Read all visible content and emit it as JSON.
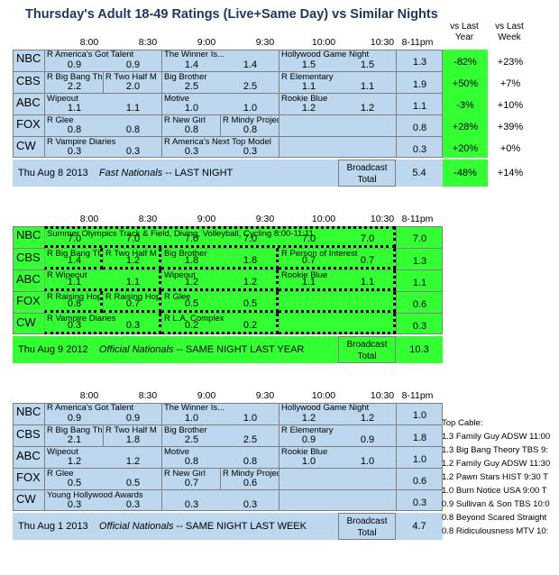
{
  "title": "Thursday's Adult 18-49 Ratings (Live+Same Day) vs Similar Nights",
  "change_headers": {
    "last_year": [
      "vs Last",
      "Year"
    ],
    "last_week": [
      "vs Last",
      "Week"
    ]
  },
  "time_headers": [
    "8:00",
    "8:30",
    "9:00",
    "9:30",
    "10:00",
    "10:30",
    "8-11pm"
  ],
  "sections": [
    {
      "id": "tonight",
      "rows": [
        {
          "net": "NBC",
          "cells": [
            {
              "span": 2,
              "name": "R America's Got Talent",
              "ratings": [
                "0.9",
                "0.9"
              ]
            },
            {
              "span": 2,
              "name": "The Winner Is...",
              "ratings": [
                "1.4",
                "1.4"
              ]
            },
            {
              "span": 2,
              "name": "Hollywood Game Night",
              "ratings": [
                "1.5",
                "1.5"
              ]
            }
          ],
          "total": "1.3",
          "vs_year": "-82%",
          "vs_week": "+23%"
        },
        {
          "net": "CBS",
          "cells": [
            {
              "span": 1,
              "name": "R Big Bang Th",
              "ratings": [
                "2.2"
              ]
            },
            {
              "span": 1,
              "name": "R Two Half M",
              "ratings": [
                "2.0"
              ]
            },
            {
              "span": 2,
              "name": "Big Brother",
              "ratings": [
                "2.5",
                "2.5"
              ]
            },
            {
              "span": 2,
              "name": "R Elementary",
              "ratings": [
                "1.1",
                "1.1"
              ]
            }
          ],
          "total": "1.9",
          "vs_year": "+50%",
          "vs_week": "+7%"
        },
        {
          "net": "ABC",
          "cells": [
            {
              "span": 2,
              "name": "Wipeout",
              "ratings": [
                "1.1",
                "1.1"
              ]
            },
            {
              "span": 2,
              "name": "Motive",
              "ratings": [
                "1.0",
                "1.0"
              ]
            },
            {
              "span": 2,
              "name": "Rookie Blue",
              "ratings": [
                "1.2",
                "1.2"
              ]
            }
          ],
          "total": "1.1",
          "vs_year": "-3%",
          "vs_week": "+10%"
        },
        {
          "net": "FOX",
          "cells": [
            {
              "span": 2,
              "name": "R Glee",
              "ratings": [
                "0.8",
                "0.8"
              ]
            },
            {
              "span": 1,
              "name": "R New Girl",
              "ratings": [
                "0.8"
              ]
            },
            {
              "span": 1,
              "name": "R Mindy Project",
              "ratings": [
                "0.8"
              ]
            },
            {
              "span": 2,
              "name": "",
              "ratings": []
            }
          ],
          "total": "0.8",
          "vs_year": "+28%",
          "vs_week": "+39%"
        },
        {
          "net": "CW",
          "cells": [
            {
              "span": 2,
              "name": "R Vampire Diaries",
              "ratings": [
                "0.3",
                "0.3"
              ]
            },
            {
              "span": 2,
              "name": "R America's Next Top Model",
              "ratings": [
                "0.3",
                "0.3"
              ]
            },
            {
              "span": 2,
              "name": "",
              "ratings": []
            }
          ],
          "total": "0.3",
          "vs_year": "+20%",
          "vs_week": "+0%"
        }
      ],
      "footer": {
        "date": "Thu Aug 8 2013",
        "kind": "Fast Nationals",
        "desc": "-- LAST NIGHT",
        "bc1": "Broadcast",
        "bc2": "Total",
        "total": "5.4",
        "vs_year": "-48%",
        "vs_week": "+14%"
      }
    },
    {
      "id": "last_year",
      "rows": [
        {
          "net": "NBC",
          "cells": [
            {
              "span": 6,
              "name": "Summer Olympics Track & Field, Diving, Volleyball, Cycling 8:00-11:11",
              "ratings": [
                "7.0",
                "7.0",
                "7.0",
                "7.0",
                "7.0",
                "7.0"
              ]
            }
          ],
          "total": "7.0"
        },
        {
          "net": "CBS",
          "cells": [
            {
              "span": 1,
              "name": "R Big Bang Th",
              "ratings": [
                "1.4"
              ]
            },
            {
              "span": 1,
              "name": "R Two Half M",
              "ratings": [
                "1.2"
              ]
            },
            {
              "span": 2,
              "name": "Big Brother",
              "ratings": [
                "1.8",
                "1.8"
              ]
            },
            {
              "span": 2,
              "name": "R Person of Interest",
              "ratings": [
                "0.7",
                "0.7"
              ]
            }
          ],
          "total": "1.3"
        },
        {
          "net": "ABC",
          "cells": [
            {
              "span": 2,
              "name": "R Wipeout",
              "ratings": [
                "1.1",
                "1.1"
              ]
            },
            {
              "span": 2,
              "name": "Wipeout",
              "ratings": [
                "1.2",
                "1.2"
              ]
            },
            {
              "span": 2,
              "name": "Rookie Blue",
              "ratings": [
                "1.1",
                "1.1"
              ]
            }
          ],
          "total": "1.1"
        },
        {
          "net": "FOX",
          "cells": [
            {
              "span": 1,
              "name": "R Raising Hop",
              "ratings": [
                "0.8"
              ]
            },
            {
              "span": 1,
              "name": "R Raising Hop",
              "ratings": [
                "0.7"
              ]
            },
            {
              "span": 2,
              "name": "R Glee",
              "ratings": [
                "0.5",
                "0.5"
              ]
            },
            {
              "span": 2,
              "name": "",
              "ratings": []
            }
          ],
          "total": "0.6"
        },
        {
          "net": "CW",
          "cells": [
            {
              "span": 2,
              "name": "R Vampire Diaries",
              "ratings": [
                "0.3",
                "0.3"
              ]
            },
            {
              "span": 2,
              "name": "R L.A. Complex",
              "ratings": [
                "0.2",
                "0.2"
              ]
            },
            {
              "span": 2,
              "name": "",
              "ratings": []
            }
          ],
          "total": "0.3"
        }
      ],
      "footer": {
        "date": "Thu Aug 9 2012",
        "kind": "Official Nationals",
        "desc": "-- SAME NIGHT LAST YEAR",
        "bc1": "Broadcast",
        "bc2": "Total",
        "total": "10.3"
      }
    },
    {
      "id": "last_week",
      "rows": [
        {
          "net": "NBC",
          "cells": [
            {
              "span": 2,
              "name": "R America's Got Talent",
              "ratings": [
                "0.9",
                "0.9"
              ]
            },
            {
              "span": 2,
              "name": "The Winner Is...",
              "ratings": [
                "1.0",
                "1.0"
              ]
            },
            {
              "span": 2,
              "name": "Hollywood Game Night",
              "ratings": [
                "1.2",
                "1.2"
              ]
            }
          ],
          "total": "1.0"
        },
        {
          "net": "CBS",
          "cells": [
            {
              "span": 1,
              "name": "R Big Bang Th",
              "ratings": [
                "2.1"
              ]
            },
            {
              "span": 1,
              "name": "R Two Half M",
              "ratings": [
                "1.8"
              ]
            },
            {
              "span": 2,
              "name": "Big Brother",
              "ratings": [
                "2.5",
                "2.5"
              ]
            },
            {
              "span": 2,
              "name": "R Elementary",
              "ratings": [
                "0.9",
                "0.9"
              ]
            }
          ],
          "total": "1.8"
        },
        {
          "net": "ABC",
          "cells": [
            {
              "span": 2,
              "name": "Wipeout",
              "ratings": [
                "1.2",
                "1.2"
              ]
            },
            {
              "span": 2,
              "name": "Motive",
              "ratings": [
                "0.8",
                "0.8"
              ]
            },
            {
              "span": 2,
              "name": "Rookie Blue",
              "ratings": [
                "1.0",
                "1.0"
              ]
            }
          ],
          "total": "1.0"
        },
        {
          "net": "FOX",
          "cells": [
            {
              "span": 2,
              "name": "R Glee",
              "ratings": [
                "0.5",
                "0.5"
              ]
            },
            {
              "span": 1,
              "name": "R New Girl",
              "ratings": [
                "0.7"
              ]
            },
            {
              "span": 1,
              "name": "R Mindy Project",
              "ratings": [
                "0.6"
              ]
            },
            {
              "span": 2,
              "name": "",
              "ratings": []
            }
          ],
          "total": "0.6"
        },
        {
          "net": "CW",
          "cells": [
            {
              "span": 2,
              "name": "Young Hollywood Awards",
              "ratings": [
                "0.3",
                "0.3"
              ]
            },
            {
              "span": 2,
              "name": "",
              "ratings": [
                "0.3",
                "0.3"
              ]
            },
            {
              "span": 2,
              "name": "",
              "ratings": []
            }
          ],
          "total": "0.3"
        }
      ],
      "footer": {
        "date": "Thu Aug 1 2013",
        "kind": "Official Nationals",
        "desc": "-- SAME NIGHT LAST WEEK",
        "bc1": "Broadcast",
        "bc2": "Total",
        "total": "4.7"
      }
    }
  ],
  "top_cable": {
    "heading": "Top Cable:",
    "items": [
      "1.3 Family Guy ADSW 11:00",
      "1.3 Big Bang Theory TBS 9:",
      "1.2 Family Guy ADSW 11:30",
      "1.2 Pawn Stars HIST 9:30 T",
      "1.0 Burn Notice USA 9:00 T",
      "0.9 Sullivan & Son TBS 10:0",
      "0.8 Beyond Scared Straight",
      "0.8 Ridiculousness MTV 10:"
    ]
  },
  "colors": {
    "blue": "#bdd7ee",
    "green": "#33ff33",
    "title": "#1f3864"
  }
}
